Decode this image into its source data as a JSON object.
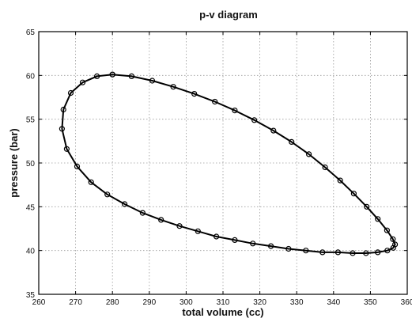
{
  "chart_data": {
    "type": "line",
    "title": "p-v diagram",
    "xlabel": "total volume (cc)",
    "ylabel": "pressure (bar)",
    "xlim": [
      260,
      360
    ],
    "ylim": [
      35,
      65
    ],
    "xticks": [
      260,
      270,
      280,
      290,
      300,
      310,
      320,
      330,
      340,
      350,
      360
    ],
    "yticks": [
      35,
      40,
      45,
      50,
      55,
      60,
      65
    ],
    "grid": true,
    "legend": "none",
    "line_color": "#000000",
    "marker": "circle-open",
    "series": [
      {
        "x": [
          280.0,
          285.2,
          290.8,
          296.5,
          302.2,
          307.8,
          313.2,
          318.5,
          323.7,
          328.6,
          333.3,
          337.7,
          341.8,
          345.5,
          349.0,
          352.0,
          354.5,
          356.1,
          356.7,
          356.2,
          354.6,
          352.0,
          348.8,
          345.2,
          341.2,
          337.0,
          332.5,
          327.8,
          323.0,
          318.1,
          313.2,
          308.2,
          303.2,
          298.2,
          293.2,
          288.2,
          283.3,
          278.6,
          274.2,
          270.4,
          267.6,
          266.3,
          266.7,
          268.7,
          271.9,
          275.8,
          280.0
        ],
        "y": [
          60.1,
          59.9,
          59.4,
          58.7,
          57.9,
          57.0,
          56.0,
          54.9,
          53.7,
          52.4,
          51.0,
          49.5,
          48.0,
          46.5,
          45.0,
          43.6,
          42.3,
          41.3,
          40.7,
          40.3,
          40.0,
          39.8,
          39.7,
          39.7,
          39.8,
          39.8,
          40.0,
          40.2,
          40.5,
          40.8,
          41.2,
          41.6,
          42.2,
          42.8,
          43.5,
          44.3,
          45.3,
          46.4,
          47.8,
          49.6,
          51.6,
          53.9,
          56.1,
          58.0,
          59.2,
          59.9,
          60.1
        ]
      }
    ]
  }
}
